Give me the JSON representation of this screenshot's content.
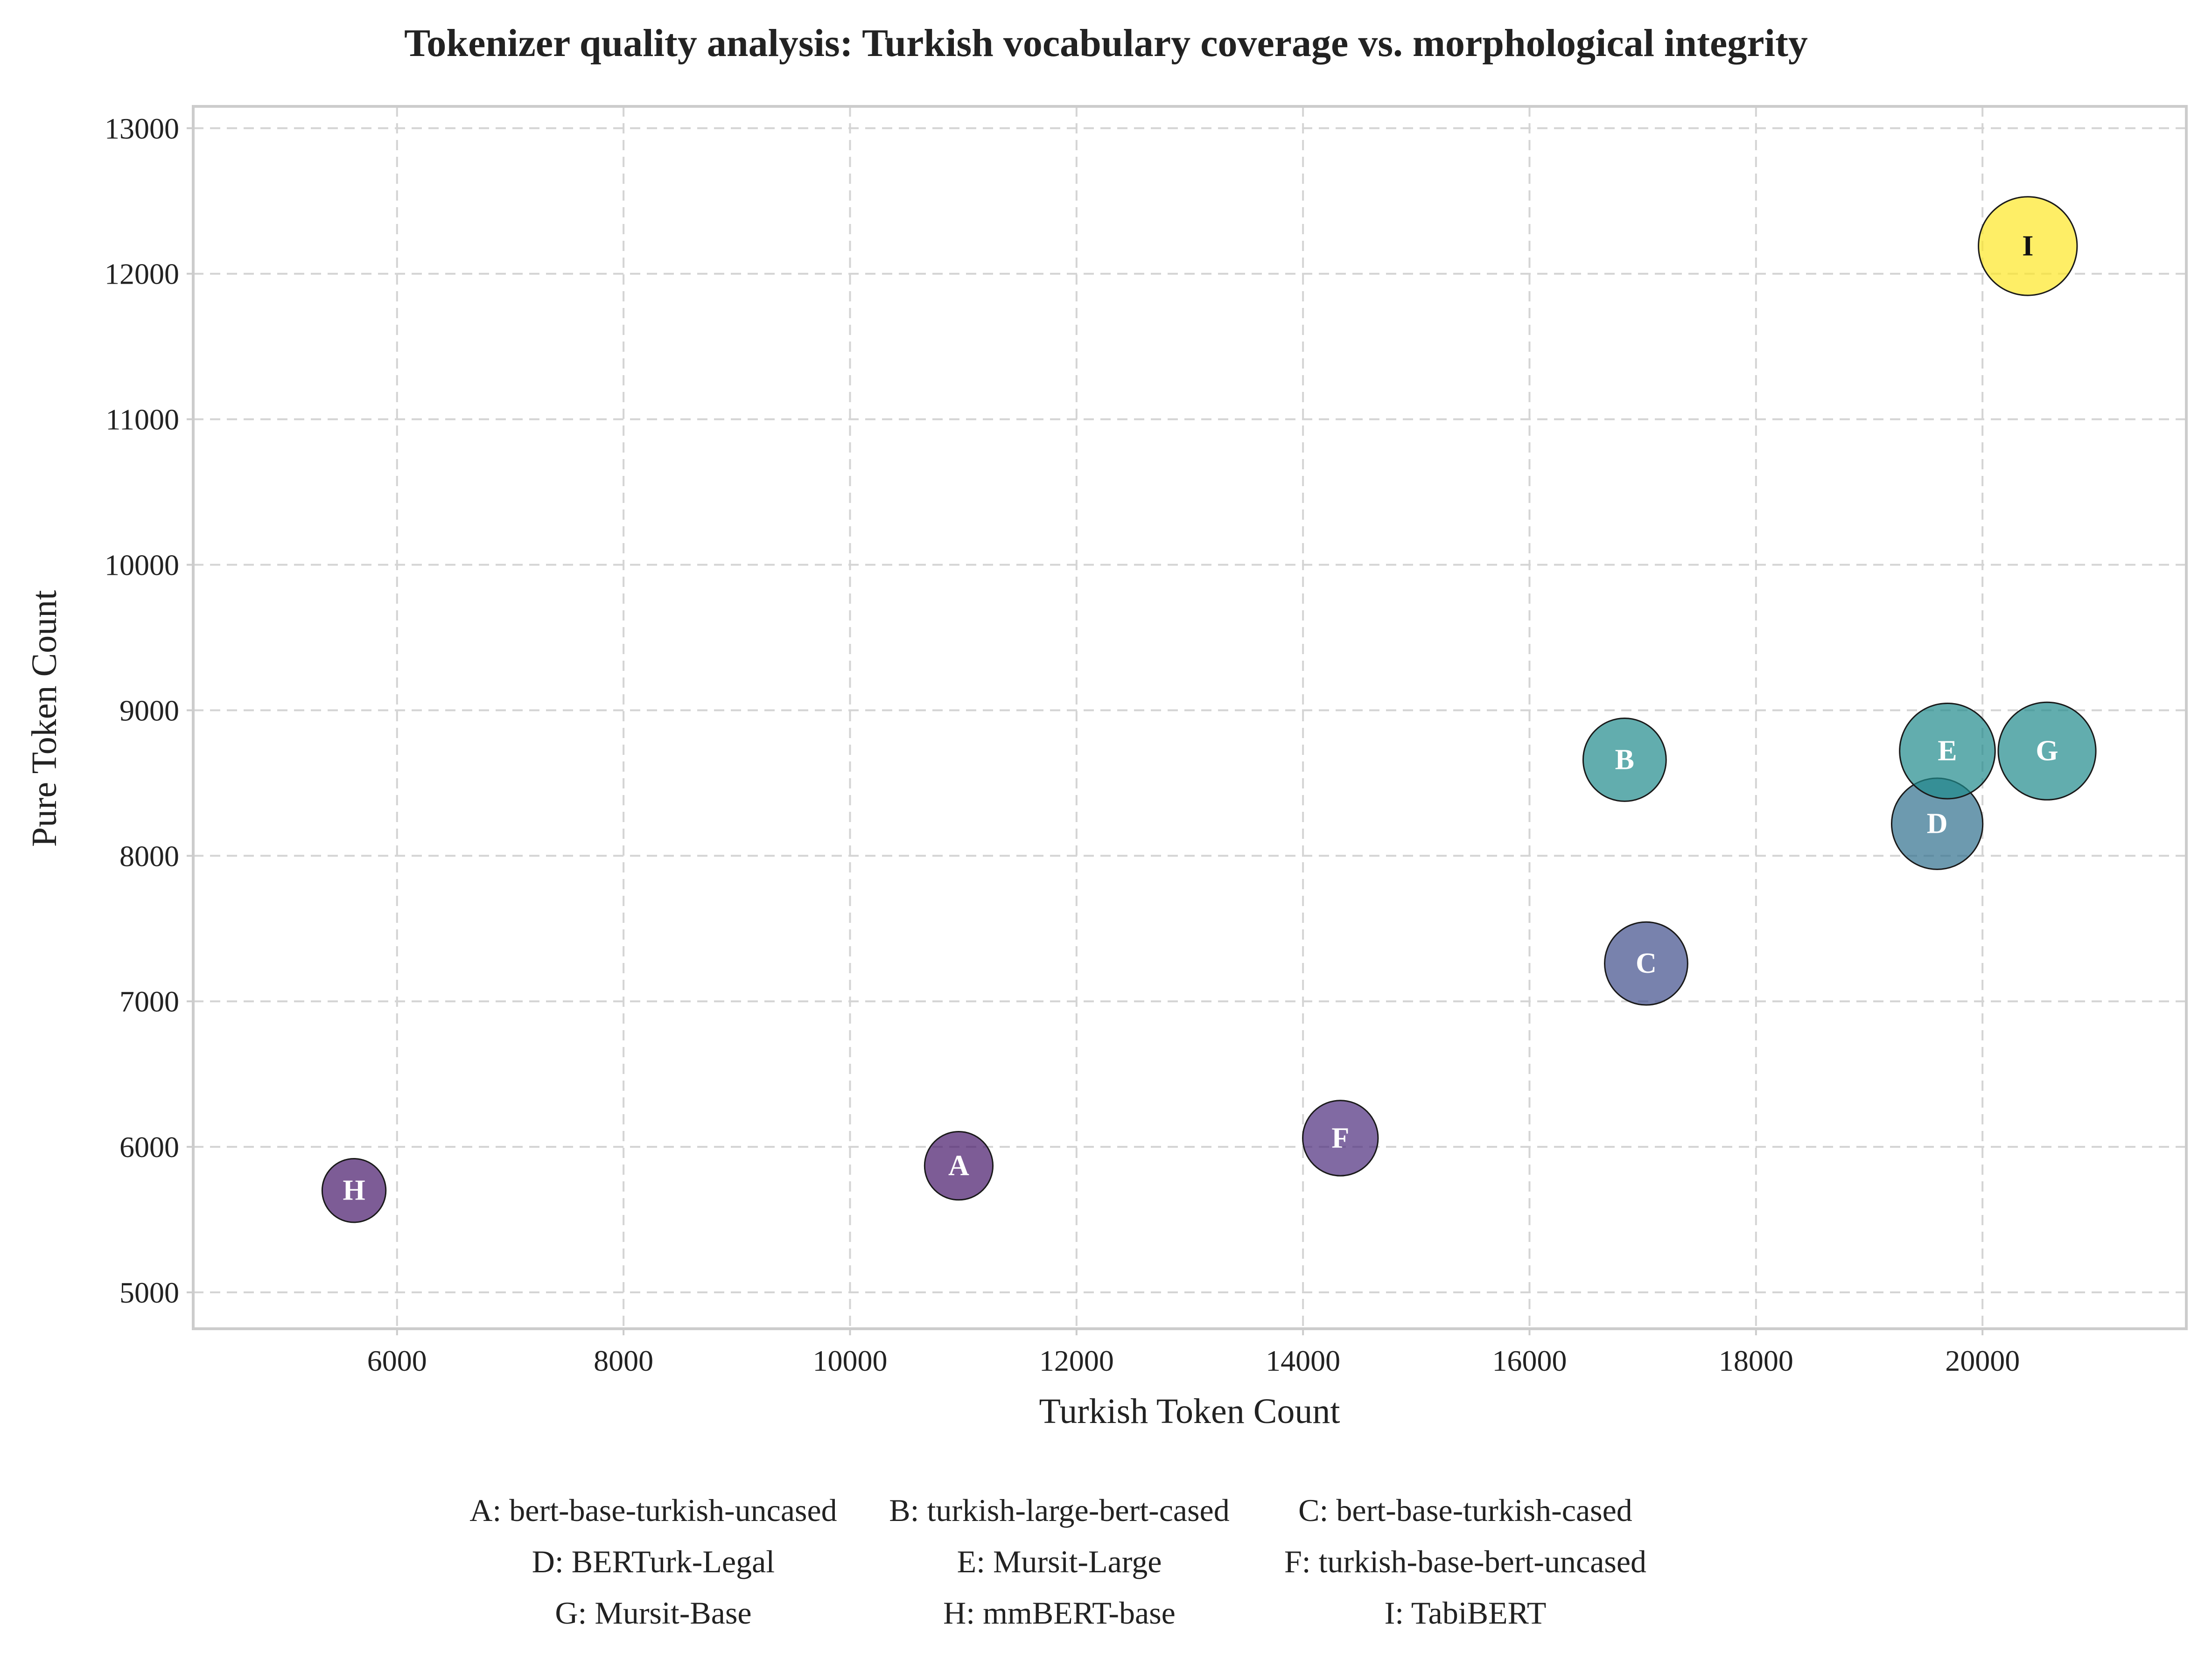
{
  "chart_data": {
    "type": "scatter",
    "title": "Tokenizer quality analysis: Turkish vocabulary coverage vs. morphological integrity",
    "xlabel": "Turkish Token Count",
    "ylabel": "Pure Token Count",
    "xlim": [
      4200,
      21800
    ],
    "ylim": [
      4750,
      13150
    ],
    "xticks": [
      6000,
      8000,
      10000,
      12000,
      14000,
      16000,
      18000,
      20000
    ],
    "yticks": [
      5000,
      6000,
      7000,
      8000,
      9000,
      10000,
      11000,
      12000,
      13000
    ],
    "grid": true,
    "points": [
      {
        "id": "H",
        "name": "mmBERT-base",
        "x": 5620,
        "y": 5700,
        "size": 1.0,
        "color": "#46176a",
        "label_color": "#ffffff"
      },
      {
        "id": "A",
        "name": "bert-base-turkish-uncased",
        "x": 10960,
        "y": 5870,
        "size": 1.15,
        "color": "#46176a",
        "label_color": "#ffffff"
      },
      {
        "id": "F",
        "name": "turkish-base-bert-uncased",
        "x": 14330,
        "y": 6060,
        "size": 1.4,
        "color": "#4b2b7c",
        "label_color": "#ffffff"
      },
      {
        "id": "C",
        "name": "bert-base-turkish-cased",
        "x": 17030,
        "y": 7260,
        "size": 1.7,
        "color": "#3f4d8a",
        "label_color": "#ffffff"
      },
      {
        "id": "B",
        "name": "turkish-large-bert-cased",
        "x": 16840,
        "y": 8660,
        "size": 1.7,
        "color": "#1f8a8b",
        "label_color": "#ffffff"
      },
      {
        "id": "D",
        "name": "BERTurk-Legal",
        "x": 19600,
        "y": 8220,
        "size": 2.05,
        "color": "#2f6f8d",
        "label_color": "#ffffff"
      },
      {
        "id": "E",
        "name": "Mursit-Large",
        "x": 19690,
        "y": 8720,
        "size": 2.25,
        "color": "#1f8a8b",
        "label_color": "#ffffff"
      },
      {
        "id": "G",
        "name": "Mursit-Base",
        "x": 20570,
        "y": 8720,
        "size": 2.35,
        "color": "#1f8a8b",
        "label_color": "#ffffff"
      },
      {
        "id": "I",
        "name": "TabiBERT",
        "x": 20400,
        "y": 12190,
        "size": 2.4,
        "color": "#fde725",
        "label_color": "#111111"
      }
    ],
    "legend_rows": [
      [
        "A: bert-base-turkish-uncased",
        "B: turkish-large-bert-cased",
        "C: bert-base-turkish-cased"
      ],
      [
        "D: BERTurk-Legal",
        "E: Mursit-Large",
        "F: turkish-base-bert-uncased"
      ],
      [
        "G: Mursit-Base",
        "H: mmBERT-base",
        "I: TabiBERT"
      ]
    ]
  }
}
